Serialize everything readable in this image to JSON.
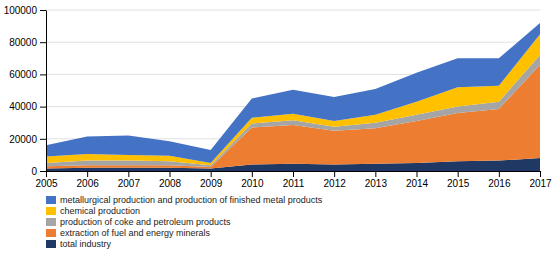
{
  "chart_data": {
    "type": "area",
    "stacked": true,
    "x": [
      2005,
      2006,
      2007,
      2008,
      2009,
      2010,
      2011,
      2012,
      2013,
      2014,
      2015,
      2016,
      2017
    ],
    "series": [
      {
        "name": "total industry",
        "color": "#1F3864",
        "values": [
          1500,
          2000,
          2000,
          2000,
          1500,
          4000,
          4500,
          4000,
          4500,
          5000,
          6000,
          6500,
          8000
        ]
      },
      {
        "name": "extraction of fuel and energy minerals",
        "color": "#ED7D31",
        "values": [
          1500,
          1500,
          1500,
          1500,
          1000,
          23000,
          24000,
          21000,
          22000,
          26000,
          30000,
          32000,
          58000
        ]
      },
      {
        "name": "production of coke and petroleum products",
        "color": "#A5A5A5",
        "values": [
          2000,
          3000,
          3000,
          2500,
          1000,
          2500,
          3000,
          2500,
          3500,
          4000,
          4000,
          4500,
          6000
        ]
      },
      {
        "name": "chemical production",
        "color": "#FFC000",
        "values": [
          4000,
          4000,
          3500,
          3500,
          1500,
          3500,
          4000,
          3500,
          5000,
          8000,
          12000,
          10000,
          13000
        ]
      },
      {
        "name": "metallurgical production and production of finished metal products",
        "color": "#4472C4",
        "values": [
          7000,
          11000,
          12000,
          9000,
          8000,
          12000,
          15000,
          15000,
          16000,
          18000,
          18000,
          17000,
          7000
        ]
      }
    ],
    "xlim": [
      2005,
      2017
    ],
    "xticks": [
      2005,
      2006,
      2007,
      2008,
      2009,
      2010,
      2011,
      2012,
      2013,
      2014,
      2015,
      2016,
      2017
    ],
    "ylim": [
      0,
      100000
    ],
    "yticks": [
      0,
      20000,
      40000,
      60000,
      80000,
      100000
    ],
    "grid": true,
    "legend": "bottom"
  }
}
